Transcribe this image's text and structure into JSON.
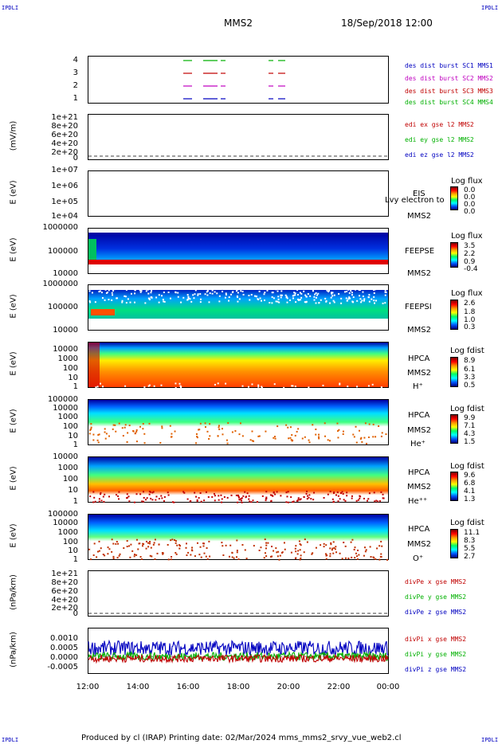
{
  "corners": {
    "tl": "IPDLI",
    "tr": "IPDLI",
    "bl": "IPDLI",
    "br": "IPDLI"
  },
  "header": {
    "spacecraft": "MMS2",
    "datetime": "18/Sep/2018 12:00"
  },
  "panels": [
    {
      "id": "burst",
      "ylabel": "",
      "ticks": [
        "4",
        "3",
        "2",
        "1"
      ],
      "right": [
        {
          "text": "des dist burst SC1 MMS1",
          "color": "#0000c0"
        },
        {
          "text": "des dist burst SC2 MMS2",
          "color": "#c000c0"
        },
        {
          "text": "des dist burst SC3 MMS3",
          "color": "#c00000"
        },
        {
          "text": "des dist burst SC4 MMS4",
          "color": "#00b000"
        }
      ]
    },
    {
      "id": "edi",
      "ylabel": "(mV/m)",
      "ticks": [
        "1e+21",
        "8e+20",
        "6e+20",
        "4e+20",
        "2e+20",
        "0"
      ],
      "right": [
        {
          "text": "edi ex gse l2 MMS2",
          "color": "#c00000"
        },
        {
          "text": "edi ey gse l2 MMS2",
          "color": "#00b000"
        },
        {
          "text": "edi ez gse l2 MMS2",
          "color": "#0000c0"
        }
      ]
    },
    {
      "id": "eis",
      "ylabel": "E (eV)",
      "ticks": [
        "1e+07",
        "1e+06",
        "1e+05",
        "1e+04"
      ],
      "inst": [
        "EIS",
        "MMS2"
      ],
      "overlay": "Lvy electron to",
      "cb_title": "Log flux",
      "cb_vals": [
        "0.0",
        "0.0",
        "0.0",
        "0.0"
      ]
    },
    {
      "id": "feepse",
      "ylabel": "E (eV)",
      "ticks": [
        "1000000",
        "100000",
        "10000"
      ],
      "inst": [
        "FEEPSE",
        "MMS2"
      ],
      "cb_title": "Log flux",
      "cb_vals": [
        "3.5",
        "2.2",
        "0.9",
        "-0.4"
      ]
    },
    {
      "id": "feepsi",
      "ylabel": "E (eV)",
      "ticks": [
        "1000000",
        "100000",
        "10000"
      ],
      "inst": [
        "FEEPSI",
        "MMS2"
      ],
      "cb_title": "Log flux",
      "cb_vals": [
        "2.6",
        "1.8",
        "1.0",
        "0.3"
      ]
    },
    {
      "id": "hpca_h",
      "ylabel": "E (eV)",
      "ticks": [
        "10000",
        "1000",
        "100",
        "10",
        "1"
      ],
      "inst": [
        "HPCA",
        "MMS2",
        "H⁺"
      ],
      "cb_title": "Log fdist",
      "cb_vals": [
        "8.9",
        "6.1",
        "3.3",
        "0.5"
      ]
    },
    {
      "id": "hpca_he",
      "ylabel": "E (eV)",
      "ticks": [
        "100000",
        "10000",
        "1000",
        "100",
        "10",
        "1"
      ],
      "inst": [
        "HPCA",
        "MMS2",
        "He⁺"
      ],
      "cb_title": "Log fdist",
      "cb_vals": [
        "9.9",
        "7.1",
        "4.3",
        "1.5"
      ]
    },
    {
      "id": "hpca_he2",
      "ylabel": "E (eV)",
      "ticks": [
        "10000",
        "1000",
        "100",
        "10",
        "1"
      ],
      "inst": [
        "HPCA",
        "MMS2",
        "He⁺⁺"
      ],
      "cb_title": "Log fdist",
      "cb_vals": [
        "9.6",
        "6.8",
        "4.1",
        "1.3"
      ]
    },
    {
      "id": "hpca_o",
      "ylabel": "E (eV)",
      "ticks": [
        "100000",
        "10000",
        "1000",
        "100",
        "10",
        "1"
      ],
      "inst": [
        "HPCA",
        "MMS2",
        "O⁺"
      ],
      "cb_title": "Log fdist",
      "cb_vals": [
        "11.1",
        "8.3",
        "5.5",
        "2.7"
      ]
    },
    {
      "id": "divpe",
      "ylabel": "(nPa/km)",
      "ticks": [
        "1e+21",
        "8e+20",
        "6e+20",
        "4e+20",
        "2e+20",
        "0"
      ],
      "right": [
        {
          "text": "divPe x gse MMS2",
          "color": "#c00000"
        },
        {
          "text": "divPe y gse MMS2",
          "color": "#00b000"
        },
        {
          "text": "divPe z gse MMS2",
          "color": "#0000c0"
        }
      ]
    },
    {
      "id": "divpi",
      "ylabel": "(nPa/km)",
      "ticks": [
        "0.0010",
        "0.0005",
        "0.0000",
        "-0.0005"
      ],
      "right": [
        {
          "text": "divPi x gse MMS2",
          "color": "#c00000"
        },
        {
          "text": "divPi y gse MMS2",
          "color": "#00b000"
        },
        {
          "text": "divPi z gse MMS2",
          "color": "#0000c0"
        }
      ]
    }
  ],
  "xaxis": {
    "ticks": [
      "12:00",
      "14:00",
      "16:00",
      "18:00",
      "20:00",
      "22:00",
      "00:00"
    ]
  },
  "footer": {
    "text": "Produced by cl (IRAP)   Printing date: 02/Mar/2024   mms_mms2_srvy_vue_web2.cl"
  },
  "chart_data": {
    "type": "line",
    "title": "MMS2 18/Sep/2018 12:00",
    "x_range": [
      "12:00",
      "00:00"
    ],
    "series": [
      {
        "name": "divPi x gse MMS2",
        "color": "#c00000",
        "approx_mean": -0.0001
      },
      {
        "name": "divPi y gse MMS2",
        "color": "#00b000",
        "approx_mean": 0.0
      },
      {
        "name": "divPi z gse MMS2",
        "color": "#0000c0",
        "approx_mean": 0.0004
      }
    ],
    "ylim": [
      -0.0008,
      0.0013
    ]
  }
}
